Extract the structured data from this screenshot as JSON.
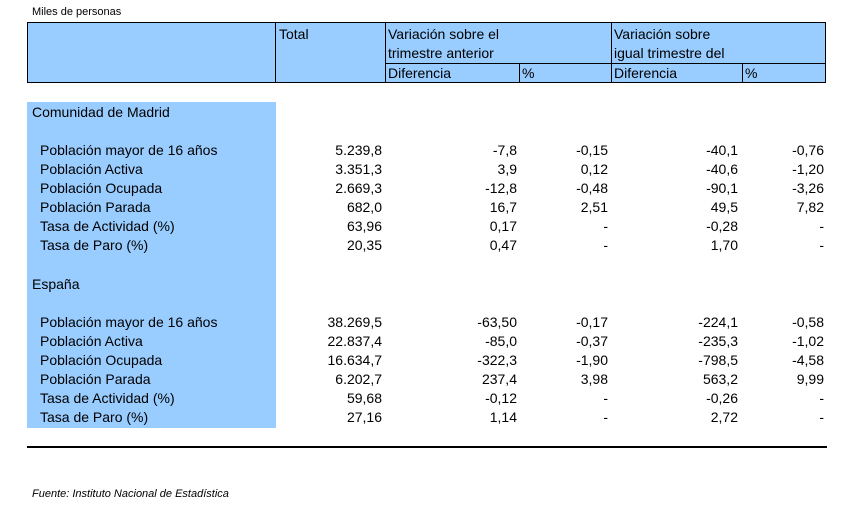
{
  "units_note": "Miles de personas",
  "header": {
    "total": "Total",
    "var_prev_line1": "Variación sobre el",
    "var_prev_line2": "trimestre anterior",
    "var_year_line1": "Variación sobre",
    "var_year_line2": "igual trimestre del",
    "diff": "Diferencia",
    "pct": "%"
  },
  "sections": [
    {
      "title": "Comunidad de Madrid",
      "rows": [
        {
          "label": "Población mayor de 16 años",
          "total": "5.239,8",
          "prev_diff": "-7,8",
          "prev_pct": "-0,15",
          "year_diff": "-40,1",
          "year_pct": "-0,76"
        },
        {
          "label": "Población Activa",
          "total": "3.351,3",
          "prev_diff": "3,9",
          "prev_pct": "0,12",
          "year_diff": "-40,6",
          "year_pct": "-1,20"
        },
        {
          "label": "Población Ocupada",
          "total": "2.669,3",
          "prev_diff": "-12,8",
          "prev_pct": "-0,48",
          "year_diff": "-90,1",
          "year_pct": "-3,26"
        },
        {
          "label": "Población Parada",
          "total": "682,0",
          "prev_diff": "16,7",
          "prev_pct": "2,51",
          "year_diff": "49,5",
          "year_pct": "7,82"
        },
        {
          "label": "Tasa de Actividad (%)",
          "total": "63,96",
          "prev_diff": "0,17",
          "prev_pct": "-",
          "year_diff": "-0,28",
          "year_pct": "-"
        },
        {
          "label": "Tasa de Paro (%)",
          "total": "20,35",
          "prev_diff": "0,47",
          "prev_pct": "-",
          "year_diff": "1,70",
          "year_pct": "-"
        }
      ]
    },
    {
      "title": "España",
      "rows": [
        {
          "label": "Población mayor de 16 años",
          "total": "38.269,5",
          "prev_diff": "-63,50",
          "prev_pct": "-0,17",
          "year_diff": "-224,1",
          "year_pct": "-0,58"
        },
        {
          "label": "Población Activa",
          "total": "22.837,4",
          "prev_diff": "-85,0",
          "prev_pct": "-0,37",
          "year_diff": "-235,3",
          "year_pct": "-1,02"
        },
        {
          "label": "Población Ocupada",
          "total": "16.634,7",
          "prev_diff": "-322,3",
          "prev_pct": "-1,90",
          "year_diff": "-798,5",
          "year_pct": "-4,58"
        },
        {
          "label": "Población Parada",
          "total": "6.202,7",
          "prev_diff": "237,4",
          "prev_pct": "3,98",
          "year_diff": "563,2",
          "year_pct": "9,99"
        },
        {
          "label": "Tasa de Actividad (%)",
          "total": "59,68",
          "prev_diff": "-0,12",
          "prev_pct": "-",
          "year_diff": "-0,26",
          "year_pct": "-"
        },
        {
          "label": "Tasa de Paro (%)",
          "total": "27,16",
          "prev_diff": "1,14",
          "prev_pct": "-",
          "year_diff": "2,72",
          "year_pct": "-"
        }
      ]
    }
  ],
  "source": "Fuente: Instituto Nacional de Estadística",
  "colors": {
    "header_fill": "#99ccff",
    "label_fill": "#99ccff"
  }
}
